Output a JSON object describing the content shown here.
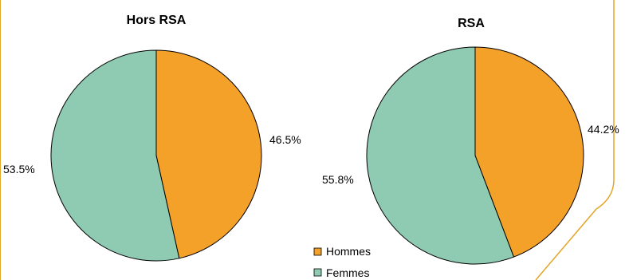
{
  "colors": {
    "hommes": "#f4a12a",
    "femmes": "#8fcab3",
    "frame": "#e4a629",
    "stroke": "#000000"
  },
  "chart_data": [
    {
      "type": "pie",
      "title": "Hors RSA",
      "slices": [
        {
          "name": "Hommes",
          "value": 46.5,
          "label": "46.5%"
        },
        {
          "name": "Femmes",
          "value": 53.5,
          "label": "53.5%"
        }
      ]
    },
    {
      "type": "pie",
      "title": "RSA",
      "slices": [
        {
          "name": "Hommes",
          "value": 44.2,
          "label": "44.2%"
        },
        {
          "name": "Femmes",
          "value": 55.8,
          "label": "55.8%"
        }
      ]
    }
  ],
  "legend": {
    "items": [
      {
        "name": "Hommes",
        "color": "#f4a12a"
      },
      {
        "name": "Femmes",
        "color": "#8fcab3"
      }
    ]
  }
}
